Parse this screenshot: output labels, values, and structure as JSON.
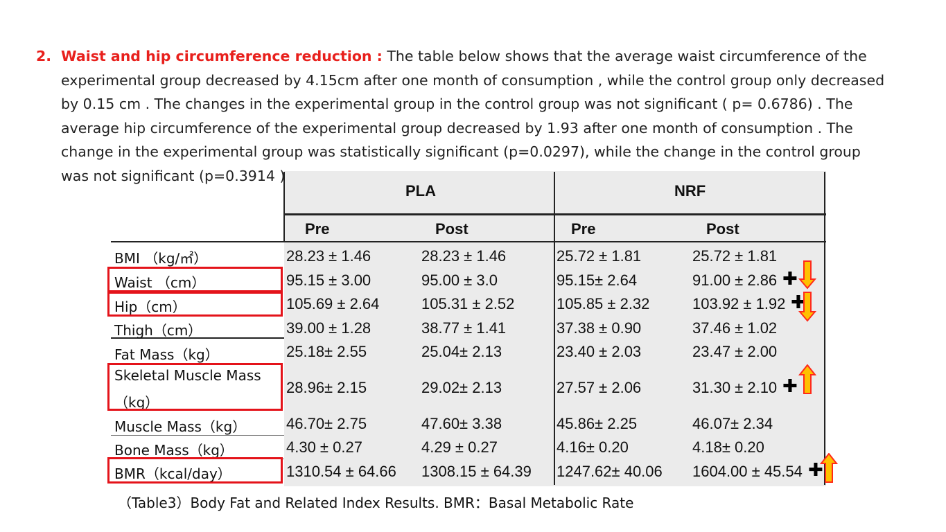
{
  "paragraph": {
    "number": "2.",
    "heading": "Waist and hip circumference reduction :",
    "body": " The table below shows that the average waist circumference of the experimental group decreased by 4.15cm after one month of consumption , while the control group only decreased by 0.15 cm . The changes in the experimental group in the control group was not significant ( p= 0.6786) . The average hip circumference of the experimental group decreased by 1.93 after one month of consumption . The change in the experimental group was statistically significant (p=0.0297), while the change in the control group was not significant (p=0.3914 ) ."
  },
  "table": {
    "group_headers": [
      "PLA",
      "NRF"
    ],
    "sub_headers": [
      "Pre",
      "Post",
      "Pre",
      "Post"
    ],
    "rows": [
      {
        "label": "BMI （kg/㎡）",
        "values": [
          "28.23 ± 1.46",
          "28.23 ± 1.46",
          "25.72 ± 1.81",
          "25.72 ± 1.81"
        ],
        "highlight": false
      },
      {
        "label": "Waist （cm）",
        "values": [
          "95.15 ± 3.00",
          "95.00 ± 3.0",
          "95.15± 2.64",
          "91.00 ± 2.86"
        ],
        "highlight": true
      },
      {
        "label": "Hip（cm）",
        "values": [
          "105.69 ± 2.64",
          "105.31 ± 2.52",
          "105.85 ± 2.32",
          "103.92 ± 1.92"
        ],
        "highlight": true
      },
      {
        "label": "Thigh（cm）",
        "values": [
          "39.00 ± 1.28",
          "38.77 ± 1.41",
          "37.38 ± 0.90",
          "37.46 ± 1.02"
        ],
        "highlight": false
      },
      {
        "label": "Fat Mass（kg）",
        "values": [
          "25.18± 2.55",
          "25.04± 2.13",
          "23.40 ± 2.03",
          "23.47 ± 2.00"
        ],
        "highlight": false
      },
      {
        "label": "Skeletal Muscle Mass",
        "label2": "（kg）",
        "values": [
          "28.96± 2.15",
          "29.02± 2.13",
          "27.57 ± 2.06",
          "31.30 ± 2.10"
        ],
        "highlight": true
      },
      {
        "label": "Muscle Mass（kg）",
        "values": [
          "46.70± 2.75",
          "47.60± 3.38",
          "45.86± 2.25",
          "46.07± 2.34"
        ],
        "highlight": false
      },
      {
        "label": "Bone Mass（kg）",
        "values": [
          "4.30 ± 0.27",
          "4.29 ± 0.27",
          "4.16± 0.20",
          "4.18± 0.20"
        ],
        "highlight": false
      },
      {
        "label": "BMR（kcal/day）",
        "values": [
          "1310.54 ± 64.66",
          "1308.15 ± 64.39",
          "1247.62± 40.06",
          "1604.00 ± 45.54"
        ],
        "highlight": true
      }
    ],
    "significance_mark": "✚",
    "arrows": {
      "down": "down-arrow-icon",
      "up": "up-arrow-icon"
    },
    "colors": {
      "highlight_box": "#e4131a",
      "arrow_fill": "#ffc000",
      "arrow_stroke": "#ff2a1a"
    }
  },
  "caption": "（Table3）Body Fat and Related Index Results. BMR：Basal Metabolic Rate"
}
